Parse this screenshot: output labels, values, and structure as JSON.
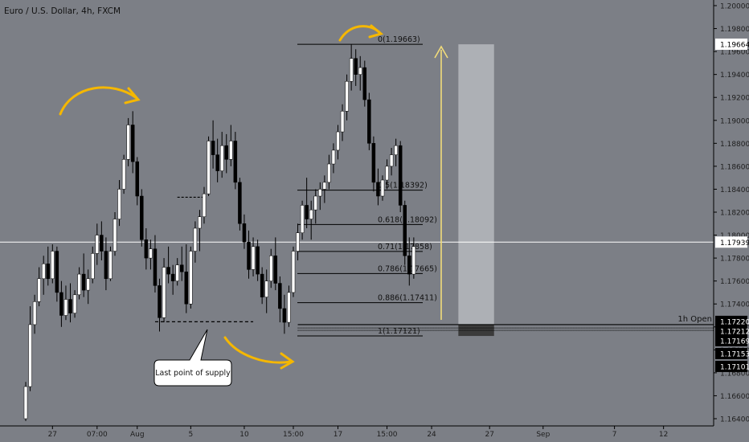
{
  "symbol_title": "Euro / U.S. Dollar, 4h, FXCM",
  "colors": {
    "background": "#7c7f86",
    "bull_candle": "#ffffff",
    "bear_candle": "#000000",
    "annotation_arrow": "#f5b700",
    "target_arrow": "#f2dc7a",
    "price_line": "#ffffff",
    "target_box": "#b6b8bd",
    "stop_box": "#3b3b3b",
    "axis_text": "#1e1e1e"
  },
  "chart_data": {
    "type": "candlestick",
    "title": "Euro / U.S. Dollar, 4h, FXCM",
    "ylim": [
      1.164,
      1.2
    ],
    "y_ticks": [
      1.2,
      1.198,
      1.196,
      1.194,
      1.192,
      1.19,
      1.188,
      1.186,
      1.184,
      1.182,
      1.18,
      1.178,
      1.176,
      1.174,
      1.172,
      1.17,
      1.168,
      1.166,
      1.164
    ],
    "y_tick_labels": [
      "1.20000",
      "1.19800",
      "1.19600",
      "1.19400",
      "1.19200",
      "1.19000",
      "1.18800",
      "1.18600",
      "1.18400",
      "1.18200",
      "1.18000",
      "1.17800",
      "1.17600",
      "1.17400",
      "1.17200",
      "1.17000",
      "1.16800",
      "1.16600",
      "1.16400"
    ],
    "x_ticks": [
      {
        "label": "27",
        "bar": 6
      },
      {
        "label": "07:00",
        "bar": 16
      },
      {
        "label": "Aug",
        "bar": 25
      },
      {
        "label": "5",
        "bar": 37
      },
      {
        "label": "10",
        "bar": 49
      },
      {
        "label": "15:00",
        "bar": 60
      },
      {
        "label": "17",
        "bar": 70
      },
      {
        "label": "15:00",
        "bar": 81
      },
      {
        "label": "24",
        "bar": 91
      },
      {
        "label": "27",
        "bar": 104
      },
      {
        "label": "Sep",
        "bar": 116
      },
      {
        "label": "7",
        "bar": 132
      },
      {
        "label": "12",
        "bar": 143
      }
    ],
    "candles": [
      [
        1.164,
        1.1672,
        1.1638,
        1.1668
      ],
      [
        1.1668,
        1.1738,
        1.1664,
        1.1722
      ],
      [
        1.1722,
        1.1748,
        1.1714,
        1.1742
      ],
      [
        1.1742,
        1.1772,
        1.1738,
        1.1762
      ],
      [
        1.1762,
        1.1782,
        1.1748,
        1.1775
      ],
      [
        1.1775,
        1.179,
        1.1756,
        1.1762
      ],
      [
        1.1762,
        1.1792,
        1.1758,
        1.1786
      ],
      [
        1.1786,
        1.179,
        1.1742,
        1.175
      ],
      [
        1.175,
        1.176,
        1.172,
        1.173
      ],
      [
        1.173,
        1.1756,
        1.1726,
        1.1744
      ],
      [
        1.1744,
        1.1758,
        1.1724,
        1.1732
      ],
      [
        1.1732,
        1.1752,
        1.1728,
        1.1748
      ],
      [
        1.1748,
        1.1772,
        1.1744,
        1.1766
      ],
      [
        1.1766,
        1.1784,
        1.1746,
        1.1752
      ],
      [
        1.1752,
        1.177,
        1.174,
        1.1762
      ],
      [
        1.1762,
        1.179,
        1.1758,
        1.1784
      ],
      [
        1.1784,
        1.181,
        1.1774,
        1.18
      ],
      [
        1.18,
        1.1812,
        1.1778,
        1.1786
      ],
      [
        1.1786,
        1.1798,
        1.1752,
        1.1762
      ],
      [
        1.1762,
        1.179,
        1.176,
        1.1786
      ],
      [
        1.1786,
        1.182,
        1.1782,
        1.1814
      ],
      [
        1.1814,
        1.1848,
        1.1808,
        1.184
      ],
      [
        1.184,
        1.187,
        1.1836,
        1.1866
      ],
      [
        1.1866,
        1.1902,
        1.186,
        1.1896
      ],
      [
        1.1896,
        1.1908,
        1.1854,
        1.1864
      ],
      [
        1.1864,
        1.1868,
        1.1826,
        1.1834
      ],
      [
        1.1834,
        1.184,
        1.179,
        1.1796
      ],
      [
        1.1796,
        1.1806,
        1.177,
        1.178
      ],
      [
        1.178,
        1.1796,
        1.177,
        1.1788
      ],
      [
        1.1788,
        1.18,
        1.175,
        1.1756
      ],
      [
        1.1756,
        1.1762,
        1.1716,
        1.1728
      ],
      [
        1.1728,
        1.178,
        1.1724,
        1.1772
      ],
      [
        1.1772,
        1.179,
        1.1758,
        1.1766
      ],
      [
        1.1766,
        1.1774,
        1.1748,
        1.176
      ],
      [
        1.176,
        1.178,
        1.1756,
        1.1774
      ],
      [
        1.1774,
        1.179,
        1.176,
        1.1768
      ],
      [
        1.1768,
        1.1792,
        1.1732,
        1.174
      ],
      [
        1.174,
        1.179,
        1.1736,
        1.1786
      ],
      [
        1.1786,
        1.1812,
        1.1776,
        1.1806
      ],
      [
        1.1806,
        1.1822,
        1.1786,
        1.1816
      ],
      [
        1.1816,
        1.1842,
        1.181,
        1.1836
      ],
      [
        1.1836,
        1.1886,
        1.1834,
        1.1882
      ],
      [
        1.1882,
        1.19,
        1.1858,
        1.187
      ],
      [
        1.187,
        1.1884,
        1.1846,
        1.1856
      ],
      [
        1.1856,
        1.189,
        1.185,
        1.1878
      ],
      [
        1.1878,
        1.1888,
        1.1854,
        1.1866
      ],
      [
        1.1866,
        1.1896,
        1.186,
        1.1882
      ],
      [
        1.1882,
        1.189,
        1.184,
        1.1846
      ],
      [
        1.1846,
        1.185,
        1.1804,
        1.181
      ],
      [
        1.181,
        1.1818,
        1.1788,
        1.1794
      ],
      [
        1.1794,
        1.1804,
        1.1762,
        1.177
      ],
      [
        1.177,
        1.1798,
        1.1764,
        1.179
      ],
      [
        1.179,
        1.1796,
        1.176,
        1.1766
      ],
      [
        1.1766,
        1.1772,
        1.174,
        1.1746
      ],
      [
        1.1746,
        1.177,
        1.1732,
        1.176
      ],
      [
        1.176,
        1.1788,
        1.1754,
        1.1782
      ],
      [
        1.1782,
        1.1798,
        1.1752,
        1.1758
      ],
      [
        1.1758,
        1.1764,
        1.1724,
        1.1736
      ],
      [
        1.1736,
        1.1748,
        1.1714,
        1.1724
      ],
      [
        1.1724,
        1.1756,
        1.172,
        1.175
      ],
      [
        1.175,
        1.179,
        1.1746,
        1.1786
      ],
      [
        1.1786,
        1.181,
        1.1778,
        1.1802
      ],
      [
        1.1802,
        1.183,
        1.1796,
        1.1826
      ],
      [
        1.1826,
        1.185,
        1.1806,
        1.1814
      ],
      [
        1.1814,
        1.183,
        1.1796,
        1.1822
      ],
      [
        1.1822,
        1.184,
        1.181,
        1.1834
      ],
      [
        1.1834,
        1.1846,
        1.1822,
        1.184
      ],
      [
        1.184,
        1.1852,
        1.1828,
        1.1846
      ],
      [
        1.1846,
        1.187,
        1.184,
        1.1862
      ],
      [
        1.1862,
        1.188,
        1.1854,
        1.1874
      ],
      [
        1.1874,
        1.1896,
        1.1866,
        1.189
      ],
      [
        1.189,
        1.1914,
        1.1882,
        1.1908
      ],
      [
        1.1908,
        1.194,
        1.19,
        1.1934
      ],
      [
        1.1934,
        1.1966,
        1.1926,
        1.1954
      ],
      [
        1.1954,
        1.1962,
        1.193,
        1.194
      ],
      [
        1.194,
        1.1956,
        1.1926,
        1.1946
      ],
      [
        1.1946,
        1.1952,
        1.1912,
        1.1918
      ],
      [
        1.1918,
        1.1924,
        1.1874,
        1.188
      ],
      [
        1.188,
        1.1886,
        1.1838,
        1.1846
      ],
      [
        1.1846,
        1.1858,
        1.1826,
        1.1834
      ],
      [
        1.1834,
        1.1852,
        1.183,
        1.1848
      ],
      [
        1.1848,
        1.1866,
        1.184,
        1.186
      ],
      [
        1.186,
        1.1876,
        1.1852,
        1.187
      ],
      [
        1.187,
        1.1884,
        1.186,
        1.1878
      ],
      [
        1.1878,
        1.1882,
        1.182,
        1.1826
      ],
      [
        1.1826,
        1.183,
        1.1774,
        1.1782
      ],
      [
        1.1782,
        1.1798,
        1.1756,
        1.1766
      ],
      [
        1.1766,
        1.1798,
        1.1762,
        1.179
      ]
    ],
    "fib_levels": [
      {
        "label": "0(1.19663)",
        "price": 1.19663
      },
      {
        "label": "0.5(1.18392)",
        "price": 1.18392
      },
      {
        "label": "0.618(1.18092)",
        "price": 1.18092
      },
      {
        "label": "0.71(1.17858)",
        "price": 1.17858
      },
      {
        "label": "0.786(1.17665)",
        "price": 1.17665
      },
      {
        "label": "0.886(1.17411)",
        "price": 1.17411
      },
      {
        "label": "1(1.17121)",
        "price": 1.17121
      }
    ],
    "price_labels": [
      {
        "price": 1.19664,
        "text": "1.19664",
        "style": "white"
      },
      {
        "price": 1.17939,
        "text": "1.17939",
        "style": "white"
      },
      {
        "price": 1.1722,
        "text": "1.17220",
        "style": "black"
      },
      {
        "price": 1.17212,
        "text": "1.17212",
        "style": "black"
      },
      {
        "price": 1.17169,
        "text": "1.17169",
        "style": "black"
      },
      {
        "price": 1.17153,
        "text": "1.17153",
        "style": "black"
      },
      {
        "price": 1.17101,
        "text": "1.17101",
        "style": "black"
      }
    ],
    "current_price": 1.17939,
    "open_line": {
      "label": "1h Open",
      "price": 1.1722
    },
    "support_line_price": 1.17212,
    "supply_level_price": 1.17245,
    "resistance_dashed_price": 1.1833,
    "target_box": {
      "top": 1.19663,
      "bottom": 1.1722,
      "start_bar": 97,
      "end_bar": 105
    },
    "stop_box": {
      "top": 1.1722,
      "bottom": 1.17121,
      "start_bar": 97,
      "end_bar": 105
    },
    "annotations": [
      {
        "text": "Last point of supply"
      }
    ]
  }
}
